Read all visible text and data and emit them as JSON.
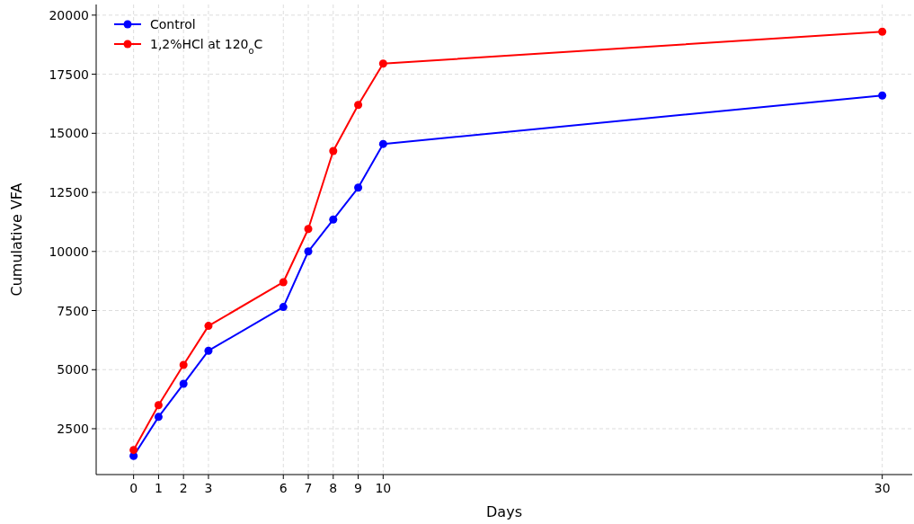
{
  "chart_data": {
    "type": "line",
    "xlabel": "Days",
    "ylabel": "Cumulative VFA",
    "x": [
      0,
      1,
      2,
      3,
      6,
      7,
      8,
      9,
      10,
      30
    ],
    "series": [
      {
        "name": "Control",
        "color": "#0000ff",
        "values": [
          1350,
          3000,
          4400,
          5800,
          7650,
          10000,
          11350,
          12700,
          14550,
          16600
        ]
      },
      {
        "name": "1,2%HCl at 120$_{o}$C",
        "color": "#ff0000",
        "values": [
          1600,
          3500,
          5200,
          6850,
          8700,
          10950,
          14250,
          16200,
          17950,
          19300
        ]
      }
    ],
    "xlim": [
      -1.5,
      31.2
    ],
    "xticks": [
      0,
      1,
      2,
      3,
      6,
      7,
      8,
      9,
      10,
      30
    ],
    "ylim": [
      560,
      20450
    ],
    "yticks": [
      2500,
      5000,
      7500,
      10000,
      12500,
      15000,
      17500,
      20000
    ],
    "grid": true,
    "legend": "top left",
    "marker": "circle",
    "line_style": "solid"
  }
}
